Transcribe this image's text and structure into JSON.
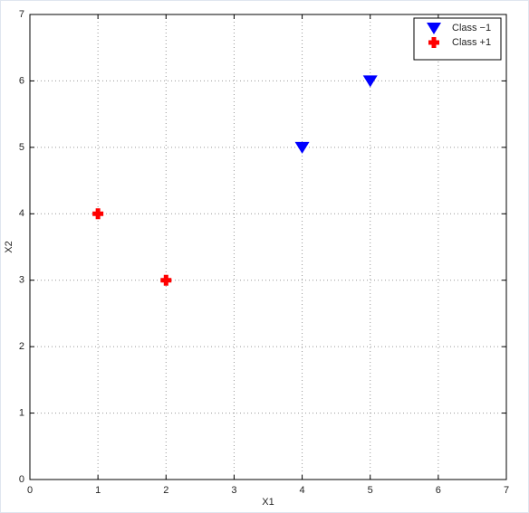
{
  "chart_data": {
    "type": "scatter",
    "xlabel": "X1",
    "ylabel": "X2",
    "xlim": [
      0,
      7
    ],
    "ylim": [
      0,
      7
    ],
    "xticks": [
      0,
      1,
      2,
      3,
      4,
      5,
      6,
      7
    ],
    "yticks": [
      0,
      1,
      2,
      3,
      4,
      5,
      6,
      7
    ],
    "grid": true,
    "legend": "upper right",
    "series": [
      {
        "name": "Class −1",
        "color": "#0000ff",
        "marker": "triangle-down",
        "x": [
          4,
          5
        ],
        "values": [
          5,
          6
        ]
      },
      {
        "name": "Class +1",
        "color": "#ff0000",
        "marker": "plus",
        "x": [
          1,
          2
        ],
        "values": [
          4,
          3
        ]
      }
    ]
  }
}
